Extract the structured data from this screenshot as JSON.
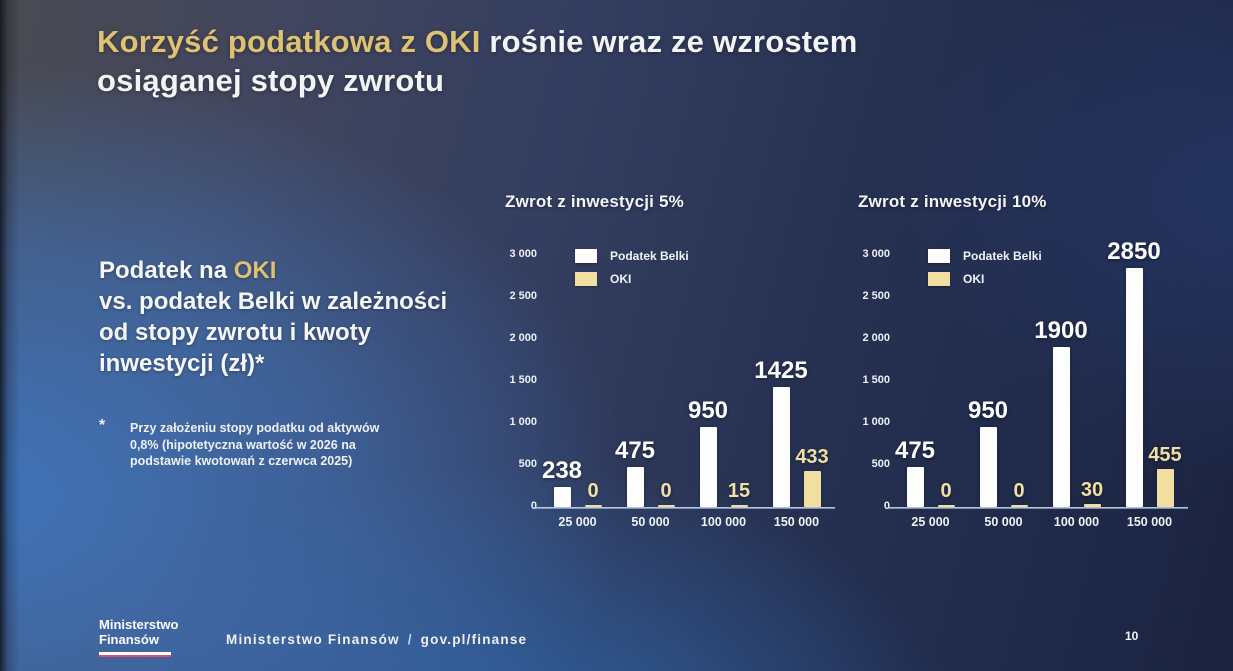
{
  "slide": {
    "title": {
      "accent": "Korzyść podatkowa z OKI",
      "rest_line1": " rośnie wraz ze wzrostem",
      "line2": "osiąganej stopy zwrotu"
    },
    "left_panel": {
      "heading_prefix": "Podatek na ",
      "heading_accent": "OKI",
      "heading_line2": "vs. podatek Belki w zależności",
      "heading_line3": "od stopy zwrotu i kwoty",
      "heading_line4": "inwestycji (zł)*",
      "footnote_marker": "*",
      "footnote": "Przy założeniu stopy podatku od aktywów 0,8% (hipotetyczna wartość w 2026 na podstawie kwotowań z czerwca 2025)"
    },
    "footer": {
      "logo_line1": "Ministerstwo",
      "logo_line2": "Finansów",
      "org_name": "Ministerstwo Finansów",
      "separator": "/",
      "website": "gov.pl/finanse",
      "page_number": "10"
    },
    "colors": {
      "accent_gold": "#dfc173",
      "bar_white": "#fdfdfe",
      "bar_gold": "#f1dfa2",
      "flag_red": "#d94f72"
    }
  },
  "chart_data": [
    {
      "type": "bar",
      "title": "Zwrot z inwestycji 5%",
      "categories": [
        "25 000",
        "50 000",
        "100 000",
        "150 000"
      ],
      "series": [
        {
          "name": "Podatek Belki",
          "color": "#fdfdfe",
          "values": [
            238,
            475,
            950,
            1425
          ]
        },
        {
          "name": "OKI",
          "color": "#f1dfa2",
          "values": [
            0,
            0,
            15,
            433
          ]
        }
      ],
      "ylim": [
        0,
        3000
      ],
      "yticks": [
        "3 000",
        "2 500",
        "2 000",
        "1 500",
        "1 000",
        "500",
        "0"
      ],
      "xlabel": "",
      "ylabel": "",
      "legend_position": "top-left",
      "grid": false
    },
    {
      "type": "bar",
      "title": "Zwrot z inwestycji 10%",
      "categories": [
        "25 000",
        "50 000",
        "100 000",
        "150 000"
      ],
      "series": [
        {
          "name": "Podatek Belki",
          "color": "#fdfdfe",
          "values": [
            475,
            950,
            1900,
            2850
          ]
        },
        {
          "name": "OKI",
          "color": "#f1dfa2",
          "values": [
            0,
            0,
            30,
            455
          ]
        }
      ],
      "ylim": [
        0,
        3000
      ],
      "yticks": [
        "3 000",
        "2 500",
        "2 000",
        "1 500",
        "1 000",
        "500",
        "0"
      ],
      "xlabel": "",
      "ylabel": "",
      "legend_position": "top-left",
      "grid": false
    }
  ]
}
